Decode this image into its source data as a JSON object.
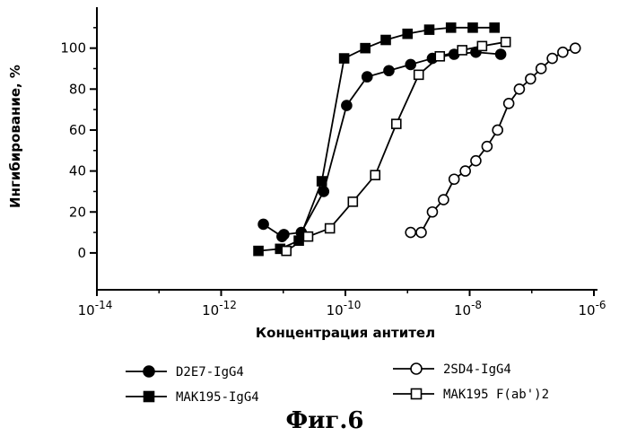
{
  "chart_data": {
    "type": "scatter",
    "title": "",
    "xlabel": "Концентрация антител",
    "ylabel": "Ингибирование, %",
    "xscale": "log",
    "xlim": [
      -14,
      -6
    ],
    "ylim": [
      -18,
      120
    ],
    "x_ticks": [
      {
        "value": -14,
        "base": "10",
        "exp": "-14"
      },
      {
        "value": -12,
        "base": "10",
        "exp": "-12"
      },
      {
        "value": -10,
        "base": "10",
        "exp": "-10"
      },
      {
        "value": -8,
        "base": "10",
        "exp": "-8"
      },
      {
        "value": -6,
        "base": "10",
        "exp": "-6"
      }
    ],
    "y_ticks": [
      {
        "value": 0,
        "label": "0"
      },
      {
        "value": 20,
        "label": "20"
      },
      {
        "value": 40,
        "label": "40"
      },
      {
        "value": 60,
        "label": "60"
      },
      {
        "value": 80,
        "label": "80"
      },
      {
        "value": 100,
        "label": "100"
      }
    ],
    "series": [
      {
        "name": "D2E7-IgG4",
        "legend_label": "D2E7-IgG4",
        "marker": "circle",
        "fill": "filled",
        "log_x": [
          -11.32,
          -11.02,
          -10.99,
          -10.71,
          -10.35,
          -9.98,
          -9.65,
          -9.3,
          -8.95,
          -8.6,
          -8.25,
          -7.9,
          -7.5
        ],
        "y": [
          14,
          8,
          9,
          10,
          30,
          72,
          86,
          89,
          92,
          95,
          97,
          98,
          97
        ]
      },
      {
        "name": "MAK195-IgG4",
        "legend_label": "MAK195-IgG4",
        "marker": "square",
        "fill": "filled",
        "log_x": [
          -11.4,
          -11.05,
          -10.75,
          -10.38,
          -10.02,
          -9.68,
          -9.35,
          -9.0,
          -8.65,
          -8.3,
          -7.95,
          -7.6
        ],
        "y": [
          1,
          2,
          6,
          35,
          95,
          100,
          104,
          107,
          109,
          110,
          110,
          110
        ]
      },
      {
        "name": "2SD4-IgG4",
        "legend_label": "2SD4-IgG4",
        "marker": "circle",
        "fill": "open",
        "log_x": [
          -8.95,
          -8.78,
          -8.6,
          -8.42,
          -8.25,
          -8.07,
          -7.9,
          -7.72,
          -7.55,
          -7.37,
          -7.2,
          -7.02,
          -6.85,
          -6.67,
          -6.5,
          -6.3
        ],
        "y": [
          10,
          10,
          20,
          26,
          36,
          40,
          45,
          52,
          60,
          73,
          80,
          85,
          90,
          95,
          98,
          100
        ]
      },
      {
        "name": "MAK195 F(ab')2",
        "legend_label": "MAK195 F(ab')2",
        "marker": "square",
        "fill": "open",
        "log_x": [
          -10.95,
          -10.6,
          -10.25,
          -9.88,
          -9.52,
          -9.18,
          -8.82,
          -8.48,
          -8.12,
          -7.8,
          -7.42
        ],
        "y": [
          1,
          8,
          12,
          25,
          38,
          63,
          87,
          96,
          99,
          101,
          103
        ]
      }
    ],
    "legend_position": "bottom",
    "caption": "Фиг.6"
  }
}
